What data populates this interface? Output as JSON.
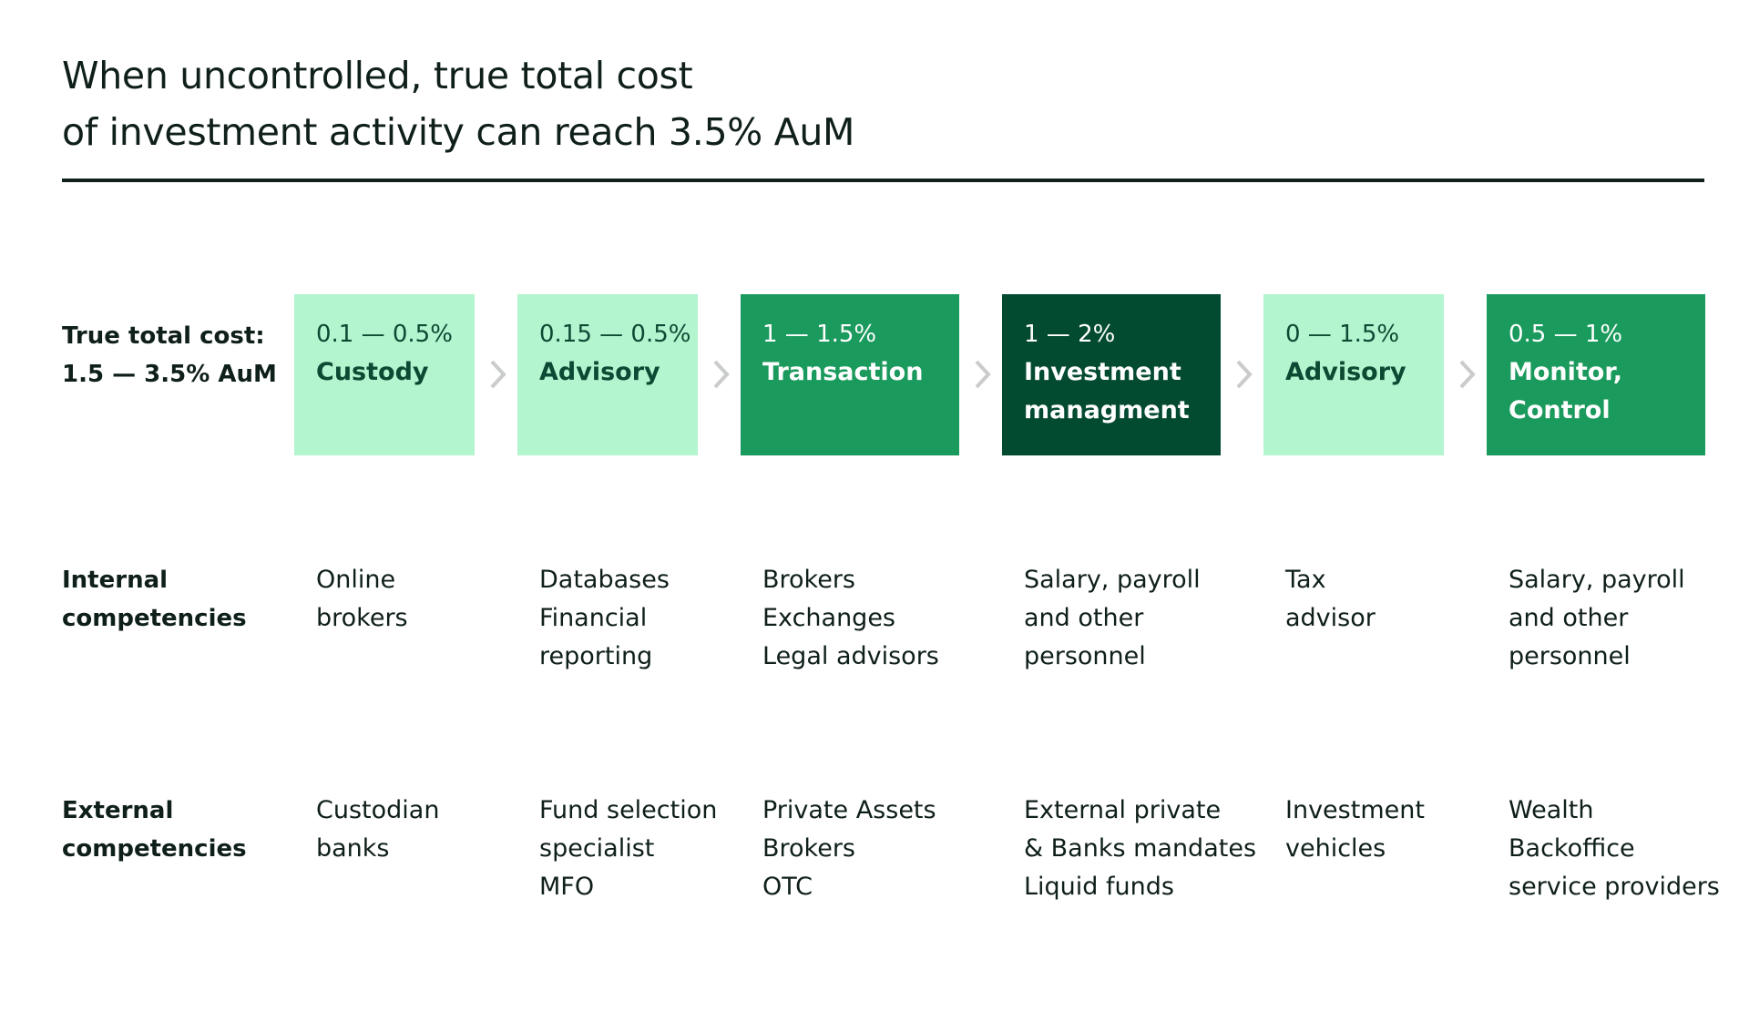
{
  "title": "When uncontrolled, true total cost\nof investment activity can reach 3.5% AuM",
  "row_labels": {
    "cost": "True total cost:\n1.5 — 3.5% AuM",
    "internal": "Internal\ncompetencies",
    "external": "External\ncompetencies"
  },
  "stages": [
    {
      "range": "0.1 — 0.5%",
      "name": "Custody",
      "shade": "light",
      "internal": "Online\nbrokers",
      "external": "Custodian\nbanks"
    },
    {
      "range": "0.15 — 0.5%",
      "name": "Advisory",
      "shade": "light",
      "internal": "Databases\nFinancial\nreporting",
      "external": "Fund selection\nspecialist\nMFO"
    },
    {
      "range": "1 — 1.5%",
      "name": "Transaction",
      "shade": "medium",
      "internal": "Brokers\nExchanges\nLegal advisors",
      "external": "Private Assets\nBrokers\nOTC"
    },
    {
      "range": "1 — 2%",
      "name": "Investment\nmanagment",
      "shade": "dark",
      "internal": "Salary, payroll\nand other\npersonnel",
      "external": "External private\n& Banks mandates\nLiquid funds"
    },
    {
      "range": "0 — 1.5%",
      "name": "Advisory",
      "shade": "light",
      "internal": "Tax\nadvisor",
      "external": "Investment\nvehicles"
    },
    {
      "range": "0.5 — 1%",
      "name": "Monitor,\nControl",
      "shade": "medium",
      "internal": "Salary, payroll\nand other\npersonnel",
      "external": "Wealth\nBackoffice\nservice providers"
    }
  ],
  "colors": {
    "light": "#b2f5cf",
    "medium": "#1a9a5c",
    "dark": "#024a30",
    "chevron": "#c9ccca",
    "text": "#0f1f1a"
  },
  "icons": {
    "connector": "chevron-right-icon"
  }
}
